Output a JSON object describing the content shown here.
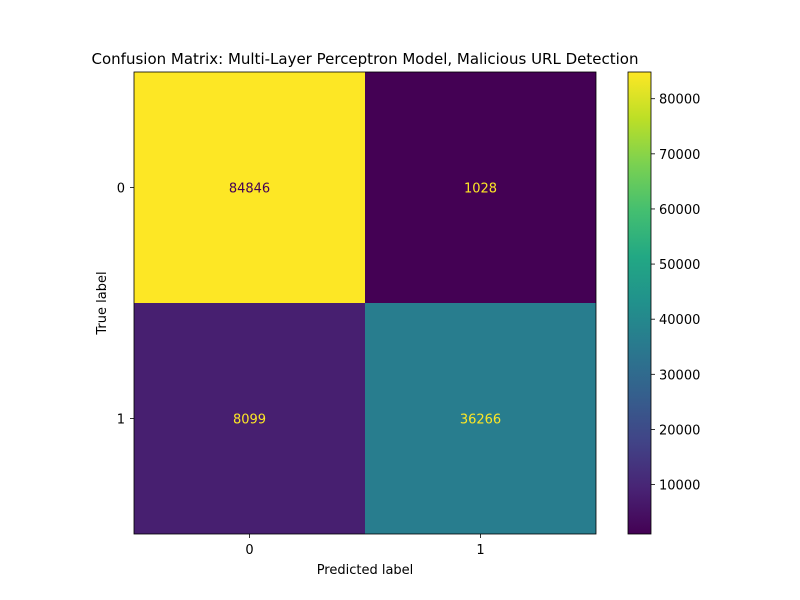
{
  "chart_data": {
    "type": "heatmap",
    "title": "Confusion Matrix: Multi-Layer Perceptron Model, Malicious URL Detection",
    "xlabel": "Predicted label",
    "ylabel": "True label",
    "x_categories": [
      "0",
      "1"
    ],
    "y_categories": [
      "0",
      "1"
    ],
    "values": [
      [
        84846,
        1028
      ],
      [
        8099,
        36266
      ]
    ],
    "colormap": "viridis",
    "colorbar": {
      "ticks": [
        10000,
        20000,
        30000,
        40000,
        50000,
        60000,
        70000,
        80000
      ],
      "tick_labels": [
        "10000",
        "20000",
        "30000",
        "40000",
        "50000",
        "60000",
        "70000",
        "80000"
      ],
      "range": [
        1028,
        84846
      ]
    },
    "text_colors": {
      "on_dark": "#fde725",
      "on_light": "#440154"
    }
  }
}
